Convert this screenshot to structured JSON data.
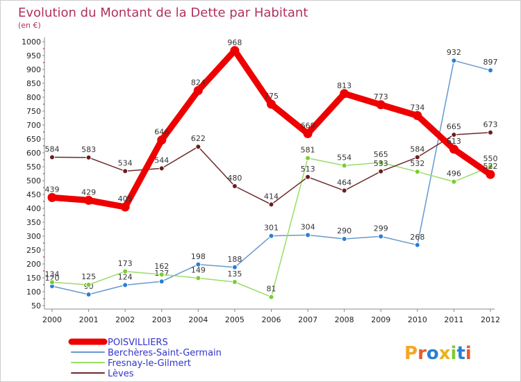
{
  "chart_data": {
    "type": "line",
    "title": "Evolution du Montant de la Dette par Habitant",
    "subtitle": "(en €)",
    "xlabel": "",
    "ylabel": "",
    "ylim": [
      50,
      1000
    ],
    "yticks": [
      50,
      100,
      150,
      200,
      250,
      300,
      350,
      400,
      450,
      500,
      550,
      600,
      650,
      700,
      750,
      800,
      850,
      900,
      950,
      1000
    ],
    "grid": false,
    "legend": "bottom-left",
    "x": [
      "2000",
      "2001",
      "2002",
      "2003",
      "2004",
      "2005",
      "2006",
      "2007",
      "2008",
      "2009",
      "2010",
      "2011",
      "2012"
    ],
    "series": [
      {
        "name": "POISVILLIERS",
        "color": "#ee0000",
        "point_color": "#ee0000",
        "emphasis": true,
        "values": [
          439,
          429,
          405,
          646,
          824,
          968,
          775,
          669,
          813,
          773,
          734,
          613,
          522
        ],
        "labels": [
          "439",
          "429",
          "405",
          "646",
          "824",
          "968",
          "775",
          "669",
          "813",
          "773",
          "734",
          "613",
          "522"
        ]
      },
      {
        "name": "Berchères-Saint-Germain",
        "color": "#6699cc",
        "point_color": "#2a7fd4",
        "emphasis": false,
        "values": [
          120,
          90,
          124,
          137,
          198,
          188,
          301,
          304,
          290,
          299,
          268,
          932,
          897
        ],
        "labels": [
          "120",
          "90",
          "124",
          "137",
          "198",
          "188",
          "301",
          "304",
          "290",
          "299",
          "268",
          "932",
          "897"
        ]
      },
      {
        "name": "Fresnay-le-Gilmert",
        "color": "#99dd66",
        "point_color": "#7acc33",
        "emphasis": false,
        "values": [
          134,
          125,
          173,
          162,
          149,
          135,
          81,
          581,
          554,
          565,
          532,
          496,
          550
        ],
        "labels": [
          "134",
          "125",
          "173",
          "162",
          "149",
          "135",
          "81",
          "581",
          "554",
          "565",
          "532",
          "496",
          "550"
        ]
      },
      {
        "name": "Lèves",
        "color": "#6b2a2a",
        "point_color": "#6b1e1e",
        "emphasis": false,
        "values": [
          584,
          583,
          534,
          544,
          622,
          480,
          414,
          513,
          464,
          533,
          584,
          665,
          673
        ],
        "labels": [
          "584",
          "583",
          "534",
          "544",
          "622",
          "480",
          "414",
          "513",
          "464",
          "533",
          "584",
          "665",
          "673"
        ]
      }
    ]
  },
  "logo": {
    "letters": [
      "P",
      "r",
      "o",
      "x",
      "i",
      "t",
      "i"
    ],
    "colors": [
      "#f5a623",
      "#e85c2c",
      "#2a7fd4",
      "#e8b31c",
      "#7acc33",
      "#2a7fd4",
      "#e85c2c"
    ]
  }
}
